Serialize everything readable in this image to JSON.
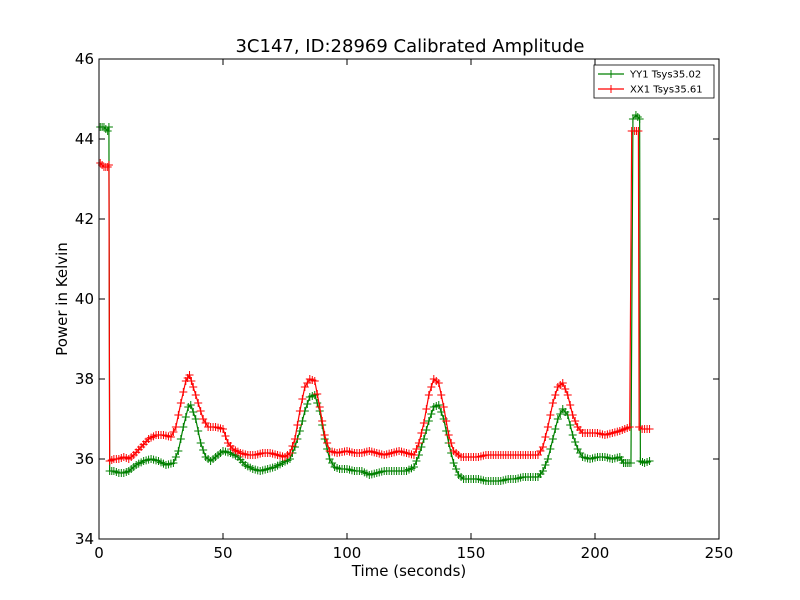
{
  "chart_data": {
    "type": "line",
    "title": "3C147, ID:28969 Calibrated Amplitude",
    "xlabel": "Time (seconds)",
    "ylabel": "Power in Kelvin",
    "xlim": [
      0,
      250
    ],
    "ylim": [
      34,
      46
    ],
    "xticks": [
      0,
      50,
      100,
      150,
      200,
      250
    ],
    "yticks": [
      34,
      36,
      38,
      40,
      42,
      44,
      46
    ],
    "grid": false,
    "legend_position": "top-right",
    "series": [
      {
        "name": "YY1 Tsys35.02",
        "color": "#008000",
        "marker": "+",
        "points": [
          [
            0.5,
            44.3
          ],
          [
            2,
            44.3
          ],
          [
            3.5,
            44.2
          ],
          [
            4,
            44.3
          ],
          [
            4.3,
            35.7
          ],
          [
            6,
            35.7
          ],
          [
            8,
            35.65
          ],
          [
            10,
            35.65
          ],
          [
            12,
            35.7
          ],
          [
            15,
            35.85
          ],
          [
            18,
            35.95
          ],
          [
            21,
            36.0
          ],
          [
            24,
            35.95
          ],
          [
            27,
            35.85
          ],
          [
            30,
            35.9
          ],
          [
            32,
            36.2
          ],
          [
            34,
            36.8
          ],
          [
            36,
            37.3
          ],
          [
            37,
            37.35
          ],
          [
            39,
            37.0
          ],
          [
            41,
            36.4
          ],
          [
            43,
            36.05
          ],
          [
            45,
            35.95
          ],
          [
            47,
            36.05
          ],
          [
            50,
            36.2
          ],
          [
            53,
            36.15
          ],
          [
            56,
            36.05
          ],
          [
            59,
            35.85
          ],
          [
            62,
            35.75
          ],
          [
            65,
            35.7
          ],
          [
            68,
            35.75
          ],
          [
            71,
            35.8
          ],
          [
            74,
            35.9
          ],
          [
            77,
            36.0
          ],
          [
            79,
            36.3
          ],
          [
            81,
            36.7
          ],
          [
            83,
            37.2
          ],
          [
            85,
            37.55
          ],
          [
            87,
            37.6
          ],
          [
            89,
            37.2
          ],
          [
            91,
            36.5
          ],
          [
            93,
            36.0
          ],
          [
            95,
            35.8
          ],
          [
            97,
            35.75
          ],
          [
            100,
            35.75
          ],
          [
            103,
            35.7
          ],
          [
            106,
            35.7
          ],
          [
            109,
            35.6
          ],
          [
            112,
            35.65
          ],
          [
            115,
            35.7
          ],
          [
            118,
            35.7
          ],
          [
            121,
            35.7
          ],
          [
            124,
            35.7
          ],
          [
            127,
            35.8
          ],
          [
            129,
            36.1
          ],
          [
            131,
            36.5
          ],
          [
            133,
            36.95
          ],
          [
            135,
            37.3
          ],
          [
            137,
            37.35
          ],
          [
            139,
            37.0
          ],
          [
            141,
            36.4
          ],
          [
            143,
            35.9
          ],
          [
            145,
            35.6
          ],
          [
            147,
            35.5
          ],
          [
            150,
            35.5
          ],
          [
            153,
            35.5
          ],
          [
            156,
            35.45
          ],
          [
            159,
            35.45
          ],
          [
            162,
            35.45
          ],
          [
            165,
            35.5
          ],
          [
            168,
            35.5
          ],
          [
            171,
            35.55
          ],
          [
            174,
            35.55
          ],
          [
            177,
            35.55
          ],
          [
            179,
            35.7
          ],
          [
            181,
            36.0
          ],
          [
            183,
            36.5
          ],
          [
            185,
            37.0
          ],
          [
            187,
            37.25
          ],
          [
            189,
            37.1
          ],
          [
            191,
            36.6
          ],
          [
            193,
            36.25
          ],
          [
            195,
            36.05
          ],
          [
            198,
            36.0
          ],
          [
            201,
            36.05
          ],
          [
            204,
            36.05
          ],
          [
            207,
            36.0
          ],
          [
            210,
            36.05
          ],
          [
            211.5,
            35.9
          ],
          [
            213,
            35.9
          ],
          [
            214.5,
            35.9
          ],
          [
            215.3,
            44.5
          ],
          [
            216.5,
            44.6
          ],
          [
            218,
            44.5
          ],
          [
            218.3,
            35.95
          ],
          [
            220,
            35.9
          ],
          [
            222,
            35.95
          ]
        ]
      },
      {
        "name": "XX1 Tsys35.61",
        "color": "#ff0000",
        "marker": "+",
        "points": [
          [
            0.5,
            43.4
          ],
          [
            2,
            43.3
          ],
          [
            3.5,
            43.3
          ],
          [
            4,
            43.35
          ],
          [
            4.3,
            35.95
          ],
          [
            6,
            36.0
          ],
          [
            8,
            36.0
          ],
          [
            10,
            36.05
          ],
          [
            12,
            36.0
          ],
          [
            14,
            36.1
          ],
          [
            17,
            36.3
          ],
          [
            20,
            36.5
          ],
          [
            23,
            36.6
          ],
          [
            26,
            36.6
          ],
          [
            29,
            36.55
          ],
          [
            31,
            36.8
          ],
          [
            33,
            37.4
          ],
          [
            35,
            37.95
          ],
          [
            36.5,
            38.1
          ],
          [
            38,
            37.8
          ],
          [
            40,
            37.4
          ],
          [
            42,
            37.0
          ],
          [
            44,
            36.8
          ],
          [
            47,
            36.8
          ],
          [
            50,
            36.75
          ],
          [
            52,
            36.4
          ],
          [
            54,
            36.25
          ],
          [
            57,
            36.15
          ],
          [
            60,
            36.1
          ],
          [
            63,
            36.1
          ],
          [
            66,
            36.15
          ],
          [
            69,
            36.15
          ],
          [
            72,
            36.1
          ],
          [
            75,
            36.05
          ],
          [
            77,
            36.15
          ],
          [
            79,
            36.5
          ],
          [
            81,
            37.2
          ],
          [
            83,
            37.8
          ],
          [
            85,
            38.0
          ],
          [
            87,
            37.95
          ],
          [
            89,
            37.3
          ],
          [
            91,
            36.6
          ],
          [
            93,
            36.2
          ],
          [
            96,
            36.15
          ],
          [
            100,
            36.2
          ],
          [
            103,
            36.15
          ],
          [
            106,
            36.15
          ],
          [
            109,
            36.2
          ],
          [
            112,
            36.15
          ],
          [
            115,
            36.1
          ],
          [
            118,
            36.15
          ],
          [
            121,
            36.2
          ],
          [
            124,
            36.15
          ],
          [
            127,
            36.1
          ],
          [
            129,
            36.4
          ],
          [
            131,
            36.9
          ],
          [
            133,
            37.6
          ],
          [
            135,
            38.0
          ],
          [
            137,
            37.9
          ],
          [
            139,
            37.3
          ],
          [
            141,
            36.6
          ],
          [
            143,
            36.2
          ],
          [
            146,
            36.05
          ],
          [
            150,
            36.05
          ],
          [
            153,
            36.05
          ],
          [
            156,
            36.1
          ],
          [
            159,
            36.1
          ],
          [
            162,
            36.1
          ],
          [
            165,
            36.1
          ],
          [
            168,
            36.1
          ],
          [
            171,
            36.1
          ],
          [
            174,
            36.1
          ],
          [
            177,
            36.1
          ],
          [
            179,
            36.3
          ],
          [
            181,
            36.8
          ],
          [
            183,
            37.4
          ],
          [
            185,
            37.8
          ],
          [
            187,
            37.9
          ],
          [
            189,
            37.6
          ],
          [
            191,
            37.1
          ],
          [
            193,
            36.8
          ],
          [
            195,
            36.65
          ],
          [
            198,
            36.65
          ],
          [
            201,
            36.65
          ],
          [
            204,
            36.6
          ],
          [
            207,
            36.65
          ],
          [
            210,
            36.7
          ],
          [
            212,
            36.75
          ],
          [
            214,
            36.8
          ],
          [
            214.8,
            44.2
          ],
          [
            216,
            44.2
          ],
          [
            217.5,
            44.2
          ],
          [
            217.8,
            36.8
          ],
          [
            219,
            36.75
          ],
          [
            221,
            36.75
          ],
          [
            222,
            36.75
          ]
        ]
      }
    ]
  }
}
